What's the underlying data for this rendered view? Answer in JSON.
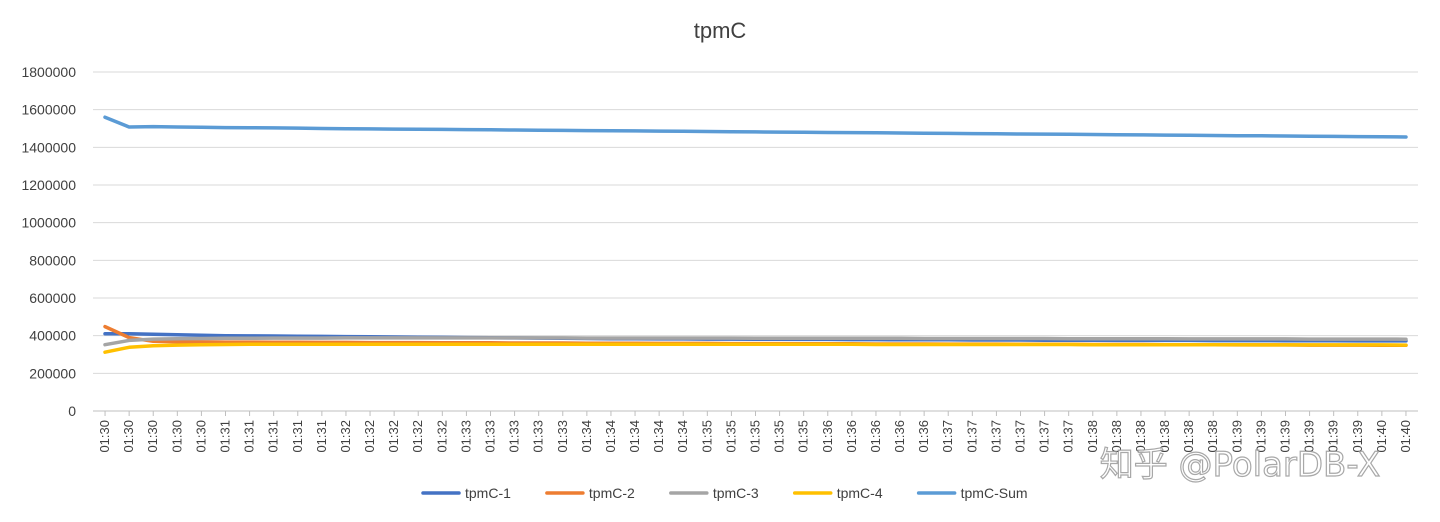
{
  "chart_data": {
    "type": "line",
    "title": "tpmC",
    "xlabel": "",
    "ylabel": "",
    "ylim": [
      0,
      1800000
    ],
    "yticks": [
      0,
      200000,
      400000,
      600000,
      800000,
      1000000,
      1200000,
      1400000,
      1600000,
      1800000
    ],
    "grid": true,
    "legend_position": "bottom",
    "x": [
      "01:30",
      "01:30",
      "01:30",
      "01:30",
      "01:30",
      "01:31",
      "01:31",
      "01:31",
      "01:31",
      "01:31",
      "01:32",
      "01:32",
      "01:32",
      "01:32",
      "01:32",
      "01:33",
      "01:33",
      "01:33",
      "01:33",
      "01:33",
      "01:34",
      "01:34",
      "01:34",
      "01:34",
      "01:34",
      "01:35",
      "01:35",
      "01:35",
      "01:35",
      "01:35",
      "01:36",
      "01:36",
      "01:36",
      "01:36",
      "01:36",
      "01:37",
      "01:37",
      "01:37",
      "01:37",
      "01:37",
      "01:37",
      "01:38",
      "01:38",
      "01:38",
      "01:38",
      "01:38",
      "01:38",
      "01:39",
      "01:39",
      "01:39",
      "01:39",
      "01:39",
      "01:39",
      "01:40",
      "01:40"
    ],
    "series": [
      {
        "name": "tpmC-1",
        "color": "#4472c4",
        "values": [
          410000,
          410000,
          408000,
          405000,
          402000,
          400000,
          399000,
          398000,
          397000,
          396000,
          395000,
          394000,
          393000,
          392000,
          391000,
          390000,
          389000,
          388000,
          387000,
          386000,
          385000,
          384000,
          384000,
          383000,
          383000,
          382000,
          382000,
          381000,
          381000,
          380000,
          380000,
          379000,
          379000,
          378000,
          378000,
          378000,
          377000,
          377000,
          377000,
          376000,
          376000,
          376000,
          375000,
          375000,
          375000,
          375000,
          374000,
          374000,
          374000,
          373000,
          373000,
          373000,
          372000,
          372000,
          372000
        ]
      },
      {
        "name": "tpmC-2",
        "color": "#ed7d31",
        "values": [
          448000,
          390000,
          370000,
          368000,
          367000,
          366000,
          366000,
          365000,
          365000,
          364000,
          364000,
          363000,
          363000,
          363000,
          362000,
          362000,
          362000,
          361000,
          361000,
          361000,
          360000,
          360000,
          360000,
          359000,
          359000,
          359000,
          358000,
          358000,
          358000,
          357000,
          357000,
          357000,
          356000,
          356000,
          356000,
          355000,
          355000,
          355000,
          354000,
          354000,
          354000,
          353000,
          353000,
          353000,
          352000,
          352000,
          352000,
          351000,
          351000,
          351000,
          350000,
          350000,
          350000,
          349000,
          349000
        ]
      },
      {
        "name": "tpmC-3",
        "color": "#a5a5a5",
        "values": [
          352000,
          375000,
          382000,
          384000,
          385000,
          386000,
          386000,
          387000,
          387000,
          387000,
          388000,
          388000,
          388000,
          388000,
          388000,
          388000,
          388000,
          388000,
          388000,
          388000,
          387000,
          387000,
          387000,
          387000,
          387000,
          387000,
          387000,
          386000,
          386000,
          386000,
          386000,
          386000,
          386000,
          386000,
          385000,
          385000,
          385000,
          385000,
          385000,
          385000,
          384000,
          384000,
          384000,
          384000,
          384000,
          383000,
          383000,
          383000,
          383000,
          383000,
          382000,
          382000,
          382000,
          382000,
          381000
        ]
      },
      {
        "name": "tpmC-4",
        "color": "#ffc000",
        "values": [
          312000,
          338000,
          346000,
          350000,
          352000,
          353000,
          354000,
          354000,
          354000,
          354000,
          354000,
          354000,
          354000,
          354000,
          354000,
          354000,
          354000,
          354000,
          354000,
          354000,
          354000,
          354000,
          354000,
          354000,
          354000,
          354000,
          354000,
          354000,
          354000,
          354000,
          354000,
          354000,
          353000,
          353000,
          353000,
          353000,
          353000,
          353000,
          353000,
          353000,
          353000,
          352000,
          352000,
          352000,
          352000,
          352000,
          352000,
          352000,
          351000,
          351000,
          351000,
          351000,
          351000,
          351000,
          350000
        ]
      },
      {
        "name": "tpmC-Sum",
        "color": "#5b9bd5",
        "values": [
          1560000,
          1508000,
          1510000,
          1508000,
          1507000,
          1505000,
          1504000,
          1503000,
          1502000,
          1500000,
          1499000,
          1498000,
          1497000,
          1496000,
          1495000,
          1494000,
          1493000,
          1492000,
          1491000,
          1490000,
          1489000,
          1488000,
          1487000,
          1486000,
          1485000,
          1484000,
          1483000,
          1482000,
          1481000,
          1480000,
          1479000,
          1478000,
          1477000,
          1476000,
          1475000,
          1474000,
          1473000,
          1472000,
          1471000,
          1470000,
          1469000,
          1468000,
          1467000,
          1466000,
          1465000,
          1464000,
          1463000,
          1462000,
          1461000,
          1460000,
          1459000,
          1458000,
          1457000,
          1456000,
          1455000
        ]
      }
    ]
  },
  "watermark": "知乎 @PolarDB-X"
}
